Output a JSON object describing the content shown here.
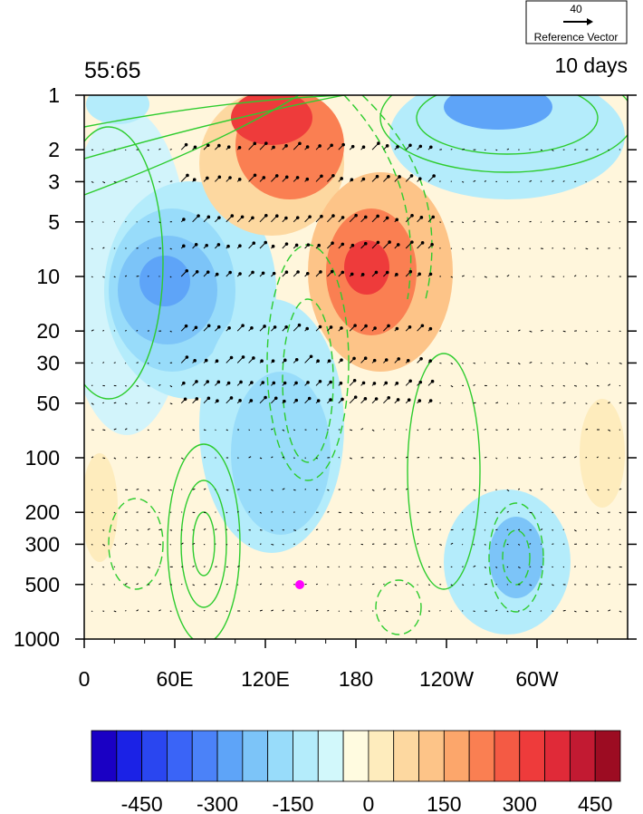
{
  "chart_data": {
    "type": "heatmap",
    "title_left": "55:65",
    "title_right": "10 days",
    "reference_vector": {
      "value": "40",
      "label": "Reference Vector"
    },
    "x_ticks": [
      "0",
      "60E",
      "120E",
      "180",
      "120W",
      "60W"
    ],
    "y_ticks": [
      "1",
      "2",
      "3",
      "5",
      "10",
      "20",
      "30",
      "50",
      "100",
      "200",
      "300",
      "500",
      "1000"
    ],
    "y_scale": "log",
    "y_range": [
      1000,
      1
    ],
    "colorbar": {
      "tick_labels": [
        "-450",
        "-300",
        "-150",
        "0",
        "150",
        "300",
        "450"
      ],
      "colors": [
        "#1a00c4",
        "#1b22e6",
        "#2a46f0",
        "#3a64f7",
        "#4b82f8",
        "#5ea4f8",
        "#7cc4f8",
        "#98dcfa",
        "#b4ecfb",
        "#d2f8fb",
        "#fffbe0",
        "#feecbd",
        "#fdd8a0",
        "#fdc488",
        "#fca66b",
        "#fa7f52",
        "#f45a44",
        "#ee3b3b",
        "#e02a38",
        "#c21a32",
        "#9c0c22"
      ]
    },
    "marker": {
      "lon_label": "145E",
      "level": "500",
      "color": "#ff00ff"
    }
  }
}
